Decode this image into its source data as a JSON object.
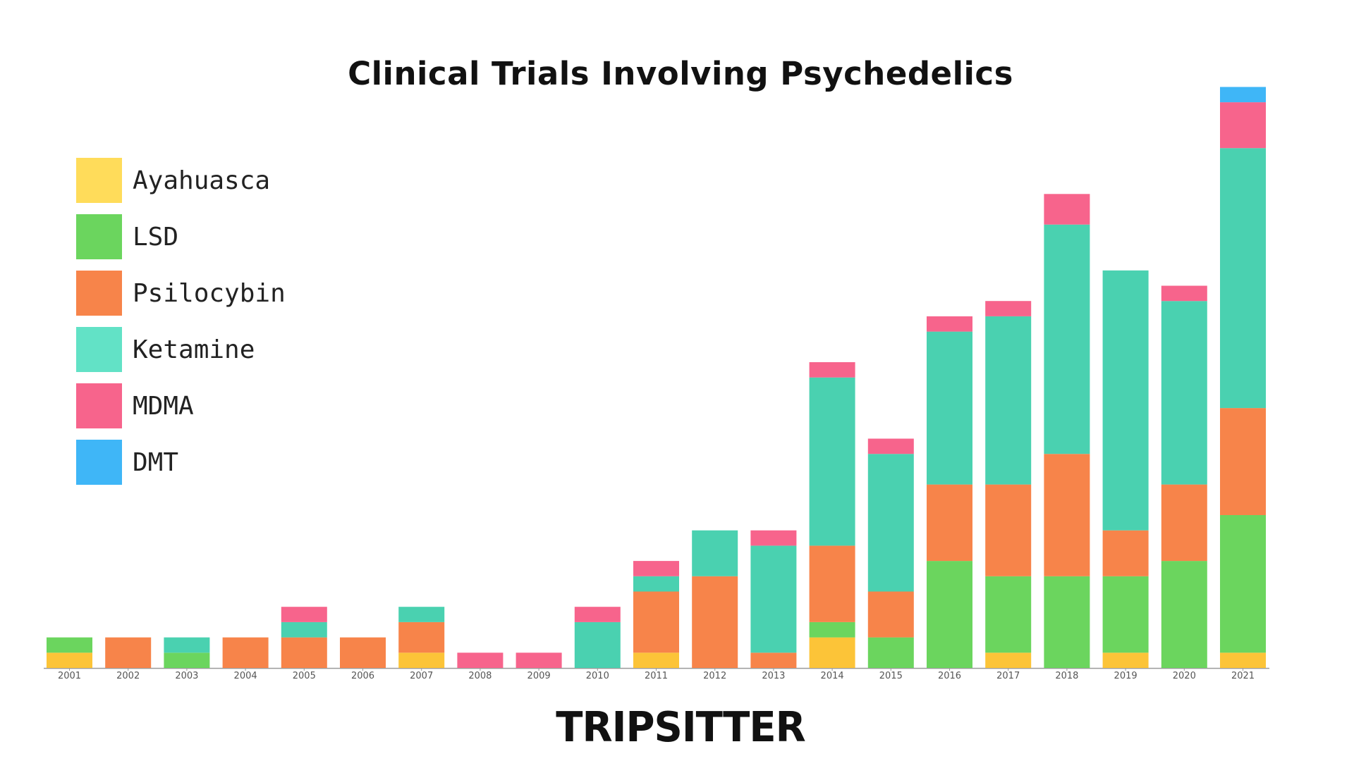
{
  "chart_data": {
    "type": "bar",
    "stacked": true,
    "title": "Clinical Trials Involving Psychedelics",
    "xlabel": "",
    "ylabel": "",
    "ylim": [
      0,
      38
    ],
    "grid": false,
    "legend_position": "top-left",
    "categories": [
      "2001",
      "2002",
      "2003",
      "2004",
      "2005",
      "2006",
      "2007",
      "2008",
      "2009",
      "2010",
      "2011",
      "2012",
      "2013",
      "2014",
      "2015",
      "2016",
      "2017",
      "2018",
      "2019",
      "2020",
      "2021"
    ],
    "series": [
      {
        "name": "Ayahuasca",
        "color": "#FCC438",
        "values": [
          1,
          0,
          0,
          0,
          0,
          0,
          1,
          0,
          0,
          0,
          1,
          0,
          0,
          2,
          0,
          0,
          1,
          0,
          1,
          0,
          1
        ]
      },
      {
        "name": "LSD",
        "color": "#6BD55E",
        "values": [
          1,
          0,
          1,
          0,
          0,
          0,
          0,
          0,
          0,
          0,
          0,
          0,
          0,
          1,
          2,
          7,
          5,
          6,
          5,
          7,
          9
        ]
      },
      {
        "name": "Psilocybin",
        "color": "#F7844A",
        "values": [
          0,
          2,
          0,
          2,
          2,
          2,
          2,
          0,
          0,
          0,
          4,
          6,
          1,
          5,
          3,
          5,
          6,
          8,
          3,
          5,
          7
        ]
      },
      {
        "name": "Ketamine",
        "color": "#4AD1B0",
        "values": [
          0,
          0,
          1,
          0,
          1,
          0,
          1,
          0,
          0,
          3,
          1,
          3,
          7,
          11,
          9,
          10,
          11,
          15,
          17,
          12,
          17
        ]
      },
      {
        "name": "MDMA",
        "color": "#F7648C",
        "values": [
          0,
          0,
          0,
          0,
          1,
          0,
          0,
          1,
          1,
          1,
          1,
          0,
          1,
          1,
          1,
          1,
          1,
          2,
          0,
          1,
          3
        ]
      },
      {
        "name": "DMT",
        "color": "#3FB6F7",
        "values": [
          0,
          0,
          0,
          0,
          0,
          0,
          0,
          0,
          0,
          0,
          0,
          0,
          0,
          0,
          0,
          0,
          0,
          0,
          0,
          0,
          1
        ]
      }
    ]
  },
  "legend": {
    "items": [
      {
        "label": "Ayahuasca",
        "color": "#FFDC5A"
      },
      {
        "label": "LSD",
        "color": "#6BD55E"
      },
      {
        "label": "Psilocybin",
        "color": "#F7844A"
      },
      {
        "label": "Ketamine",
        "color": "#62E2C6"
      },
      {
        "label": "MDMA",
        "color": "#F7648C"
      },
      {
        "label": "DMT",
        "color": "#3FB6F7"
      }
    ]
  },
  "brand": {
    "name": "TRIPSITTER"
  }
}
